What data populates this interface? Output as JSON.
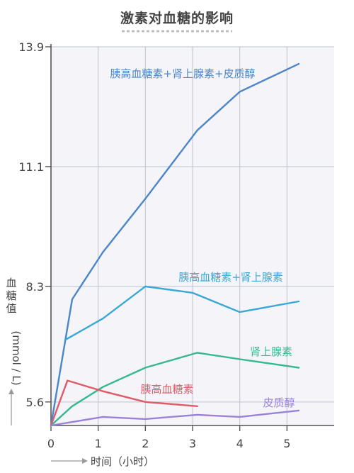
{
  "chart_data": {
    "type": "line",
    "title": "激素对血糖的影响",
    "xlabel": "时间（小时）",
    "ylabel": "血糖值",
    "yunit": "(mmol / L)",
    "xlim": [
      0,
      6
    ],
    "ylim": [
      5.05,
      13.9
    ],
    "x_ticks": [
      0,
      1,
      2,
      3,
      4,
      5
    ],
    "y_ticks": [
      5.6,
      8.3,
      11.1,
      13.9
    ],
    "grid": true,
    "legend": "inline labels",
    "series": [
      {
        "name": "胰高血糖素+肾上腺素+皮质醇",
        "color": "#4a86c8",
        "x": [
          0,
          0.45,
          1.1,
          2,
          3.1,
          4,
          5.25
        ],
        "y": [
          5.05,
          8.0,
          9.1,
          10.35,
          11.95,
          12.85,
          13.5
        ]
      },
      {
        "name": "胰高血糖素+肾上腺素",
        "color": "#3aa8d4",
        "x": [
          0.3,
          1.1,
          2,
          3,
          4,
          5.25
        ],
        "y": [
          7.05,
          7.55,
          8.3,
          8.15,
          7.7,
          7.95
        ]
      },
      {
        "name": "肾上腺素",
        "color": "#36b891",
        "x": [
          0,
          0.45,
          1.1,
          2,
          3.1,
          4,
          5.25
        ],
        "y": [
          5.05,
          5.5,
          5.95,
          6.4,
          6.75,
          6.6,
          6.4
        ]
      },
      {
        "name": "胰高血糖素",
        "color": "#e05a68",
        "x": [
          0,
          0.35,
          1.1,
          2,
          3.1
        ],
        "y": [
          5.05,
          6.1,
          5.85,
          5.6,
          5.5
        ]
      },
      {
        "name": "皮质醇",
        "color": "#9b82d6",
        "x": [
          0,
          1.1,
          2,
          3.1,
          4,
          5.25
        ],
        "y": [
          5.05,
          5.25,
          5.2,
          5.3,
          5.25,
          5.4
        ]
      }
    ]
  }
}
